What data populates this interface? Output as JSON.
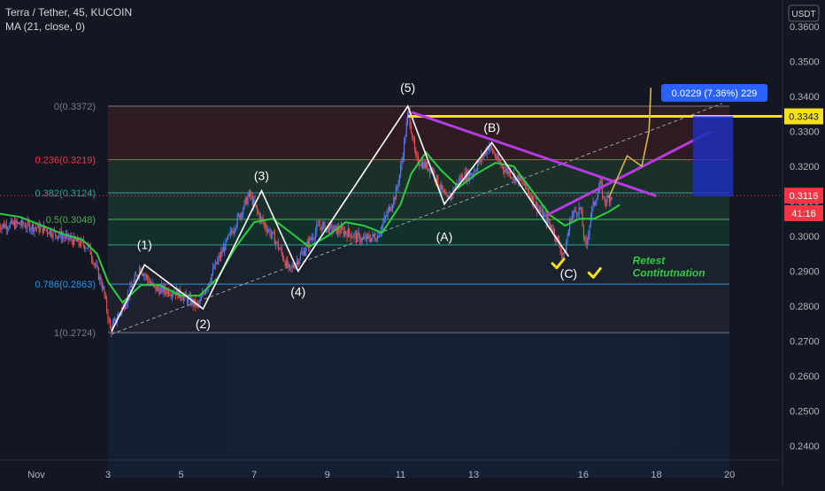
{
  "header": {
    "symbol_line": "Terra / Tether, 45, KUCOIN",
    "indicator_line": "MA (21, close, 0)"
  },
  "currency_label": "USDT",
  "colors": {
    "background": "#131722",
    "up_candle": "#5b7cfa",
    "down_candle": "#ef5350",
    "ma_line": "#2ecc40",
    "wave_lines": "#ffffff",
    "resistance": "#f5e11b",
    "trendline": "#b53be0",
    "projection": "#d6b84a",
    "annotation_text": "#2ecc40",
    "checkmark": "#f5e11b",
    "price_badge": "#f23645",
    "measure_box": "#1e2fb8",
    "measure_label": "#2962ff"
  },
  "chart_data": {
    "type": "candlestick",
    "title": "Terra / Tether, 45, KUCOIN",
    "xlabel": "",
    "ylabel": "",
    "ylim": [
      0.2365,
      0.3655
    ],
    "y_axis_ticks": [
      "0.3600",
      "0.3500",
      "0.3400",
      "0.3300",
      "0.3200",
      "0.3100",
      "0.3000",
      "0.2900",
      "0.2800",
      "0.2700",
      "0.2600",
      "0.2500",
      "0.2400"
    ],
    "x_axis_ticks": [
      {
        "label": "Nov",
        "day": 1.0
      },
      {
        "label": "3",
        "day": 3
      },
      {
        "label": "5",
        "day": 5
      },
      {
        "label": "7",
        "day": 7
      },
      {
        "label": "9",
        "day": 9
      },
      {
        "label": "11",
        "day": 11
      },
      {
        "label": "13",
        "day": 13
      },
      {
        "label": "16",
        "day": 16
      },
      {
        "label": "18",
        "day": 18
      },
      {
        "label": "20",
        "day": 20
      }
    ],
    "grid": false,
    "price_path": [
      [
        0.0,
        0.303
      ],
      [
        0.6,
        0.3035
      ],
      [
        1.3,
        0.302
      ],
      [
        1.9,
        0.2995
      ],
      [
        2.5,
        0.297
      ],
      [
        2.9,
        0.285
      ],
      [
        3.1,
        0.273
      ],
      [
        3.5,
        0.281
      ],
      [
        3.9,
        0.291
      ],
      [
        4.3,
        0.285
      ],
      [
        4.9,
        0.284
      ],
      [
        5.5,
        0.28
      ],
      [
        5.9,
        0.29
      ],
      [
        6.4,
        0.301
      ],
      [
        6.9,
        0.312
      ],
      [
        7.2,
        0.305
      ],
      [
        7.6,
        0.299
      ],
      [
        8.0,
        0.29
      ],
      [
        8.4,
        0.296
      ],
      [
        8.8,
        0.303
      ],
      [
        9.2,
        0.302
      ],
      [
        9.6,
        0.301
      ],
      [
        10.0,
        0.299
      ],
      [
        10.4,
        0.3
      ],
      [
        10.9,
        0.312
      ],
      [
        11.05,
        0.32
      ],
      [
        11.25,
        0.336
      ],
      [
        11.45,
        0.322
      ],
      [
        11.9,
        0.319
      ],
      [
        12.3,
        0.31
      ],
      [
        12.7,
        0.317
      ],
      [
        13.0,
        0.318
      ],
      [
        13.45,
        0.326
      ],
      [
        13.8,
        0.32
      ],
      [
        14.4,
        0.315
      ],
      [
        14.8,
        0.308
      ],
      [
        15.2,
        0.302
      ],
      [
        15.5,
        0.294
      ],
      [
        15.7,
        0.306
      ],
      [
        15.95,
        0.308
      ],
      [
        16.1,
        0.296
      ],
      [
        16.25,
        0.307
      ],
      [
        16.5,
        0.315
      ],
      [
        16.6,
        0.31
      ],
      [
        16.8,
        0.3116
      ]
    ],
    "moving_average": {
      "name": "MA (21, close, 0)",
      "points": [
        [
          0.0,
          0.3065
        ],
        [
          0.6,
          0.3055
        ],
        [
          1.2,
          0.303
        ],
        [
          1.8,
          0.3005
        ],
        [
          2.3,
          0.299
        ],
        [
          2.7,
          0.295
        ],
        [
          3.0,
          0.287
        ],
        [
          3.4,
          0.281
        ],
        [
          3.9,
          0.286
        ],
        [
          4.4,
          0.286
        ],
        [
          5.0,
          0.283
        ],
        [
          5.5,
          0.283
        ],
        [
          6.0,
          0.288
        ],
        [
          6.5,
          0.297
        ],
        [
          7.0,
          0.304
        ],
        [
          7.5,
          0.305
        ],
        [
          8.0,
          0.301
        ],
        [
          8.5,
          0.297
        ],
        [
          9.0,
          0.3
        ],
        [
          9.5,
          0.304
        ],
        [
          10.0,
          0.303
        ],
        [
          10.5,
          0.301
        ],
        [
          11.0,
          0.309
        ],
        [
          11.3,
          0.318
        ],
        [
          11.7,
          0.324
        ],
        [
          12.1,
          0.319
        ],
        [
          12.6,
          0.314
        ],
        [
          13.1,
          0.318
        ],
        [
          13.6,
          0.321
        ],
        [
          14.1,
          0.32
        ],
        [
          14.6,
          0.313
        ],
        [
          15.1,
          0.306
        ],
        [
          15.5,
          0.303
        ],
        [
          15.9,
          0.305
        ],
        [
          16.3,
          0.305
        ],
        [
          16.7,
          0.307
        ],
        [
          17.0,
          0.309
        ]
      ]
    },
    "fibonacci_levels": [
      {
        "label": "0(0.3372)",
        "value": 0.3372,
        "color": "#787b86"
      },
      {
        "label": "0.236(0.3219)",
        "value": 0.3219,
        "color": "#f23645"
      },
      {
        "label": "0.382(0.3124)",
        "value": 0.3124,
        "color": "#26a69a"
      },
      {
        "label": "0.5(0.3048)",
        "value": 0.3048,
        "color": "#4caf50"
      },
      {
        "label": "",
        "value": 0.2975,
        "color": "#26a69a"
      },
      {
        "label": "0.786(0.2863)",
        "value": 0.2863,
        "color": "#2196f3"
      },
      {
        "label": "1(0.2724)",
        "value": 0.2724,
        "color": "#787b86"
      }
    ],
    "fib_x_range": [
      3.0,
      20.0
    ],
    "elliott_wave_labels": [
      {
        "label": "(1)",
        "day": 4.0,
        "value": 0.2918
      },
      {
        "label": "(2)",
        "day": 5.6,
        "value": 0.2792
      },
      {
        "label": "(3)",
        "day": 7.2,
        "value": 0.313
      },
      {
        "label": "(4)",
        "day": 8.2,
        "value": 0.29
      },
      {
        "label": "(5)",
        "day": 11.2,
        "value": 0.3372
      },
      {
        "label": "(A)",
        "day": 12.2,
        "value": 0.3092
      },
      {
        "label": "(B)",
        "day": 13.5,
        "value": 0.3268
      },
      {
        "label": "(C)",
        "day": 15.6,
        "value": 0.2942
      }
    ],
    "wave_path": [
      [
        3.1,
        0.2728
      ],
      [
        4.0,
        0.2918
      ],
      [
        5.6,
        0.2792
      ],
      [
        7.2,
        0.313
      ],
      [
        8.2,
        0.29
      ],
      [
        11.2,
        0.3372
      ],
      [
        12.2,
        0.3092
      ],
      [
        13.5,
        0.3268
      ],
      [
        15.6,
        0.2942
      ]
    ],
    "diagonal_line": [
      [
        3.1,
        0.272
      ],
      [
        19.8,
        0.338
      ]
    ],
    "resistance_line": {
      "value": 0.3343,
      "x_start": 11.2
    },
    "descending_trendline": [
      [
        11.3,
        0.3355
      ],
      [
        18.0,
        0.3115
      ]
    ],
    "ascending_trendline": [
      [
        15.0,
        0.306
      ],
      [
        19.5,
        0.33
      ]
    ],
    "projection_path": [
      [
        16.7,
        0.311
      ],
      [
        17.2,
        0.323
      ],
      [
        17.6,
        0.32
      ],
      [
        17.8,
        0.33
      ],
      [
        17.85,
        0.3425
      ]
    ],
    "measure_box": {
      "x_start": 19.0,
      "x_end": 20.1,
      "low": 0.3114,
      "high": 0.3343,
      "label": "0.0229 (7.36%) 229"
    },
    "checkmarks": [
      [
        15.3,
        0.2922
      ],
      [
        16.3,
        0.2895
      ]
    ],
    "annotation": {
      "lines": [
        "Retest",
        "Contitutnation"
      ],
      "day": 17.3,
      "value": 0.292
    },
    "price_badges": [
      {
        "text": "0.3343",
        "value": 0.3343,
        "style": "yellow"
      },
      {
        "text": "0.3116",
        "value": 0.3116,
        "style": "red"
      },
      {
        "text": "41:16",
        "value": 0.3066,
        "style": "red"
      }
    ],
    "current_price": 0.3116
  }
}
